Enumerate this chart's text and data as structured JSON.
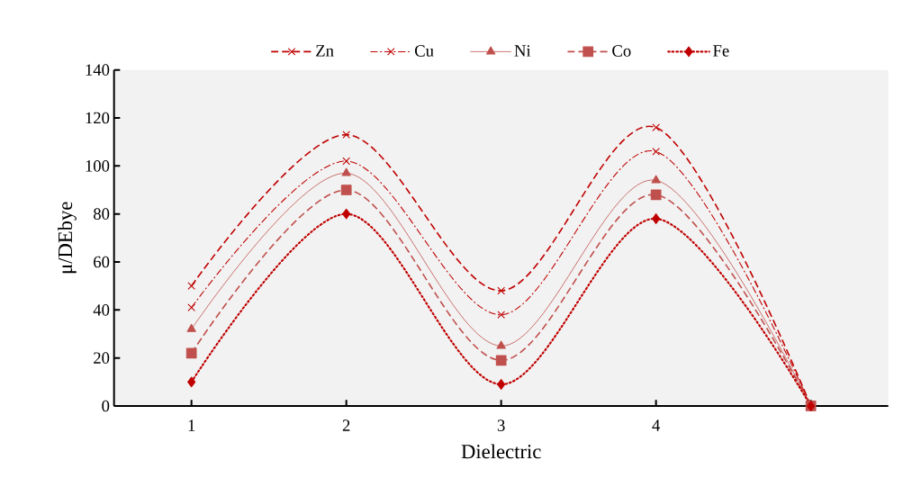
{
  "chart_data": {
    "type": "line",
    "xlabel": "Dielectric",
    "ylabel": "μ/DEbye",
    "categories": [
      "1",
      "2",
      "3",
      "4",
      null
    ],
    "ylim": [
      0,
      140
    ],
    "yticks": [
      0,
      20,
      40,
      60,
      80,
      100,
      120,
      140
    ],
    "legend": "top",
    "grid": false,
    "series": [
      {
        "name": "Zn",
        "color": "#c00000",
        "marker": "cross",
        "line_style": "dashed",
        "values": [
          50,
          113,
          48,
          116,
          0
        ]
      },
      {
        "name": "Cu",
        "color": "#c00000",
        "marker": "cross",
        "line_style": "dashdot",
        "values": [
          41,
          102,
          38,
          106,
          0
        ]
      },
      {
        "name": "Ni",
        "color": "#c0504d",
        "marker": "triangle",
        "line_style": "solid",
        "values": [
          32,
          97,
          25,
          94,
          0
        ]
      },
      {
        "name": "Co",
        "color": "#c0504d",
        "marker": "square",
        "line_style": "dashed",
        "values": [
          22,
          90,
          19,
          88,
          0
        ]
      },
      {
        "name": "Fe",
        "color": "#c00000",
        "marker": "diamond",
        "line_style": "dotted",
        "values": [
          10,
          80,
          9,
          78,
          0
        ]
      }
    ]
  }
}
